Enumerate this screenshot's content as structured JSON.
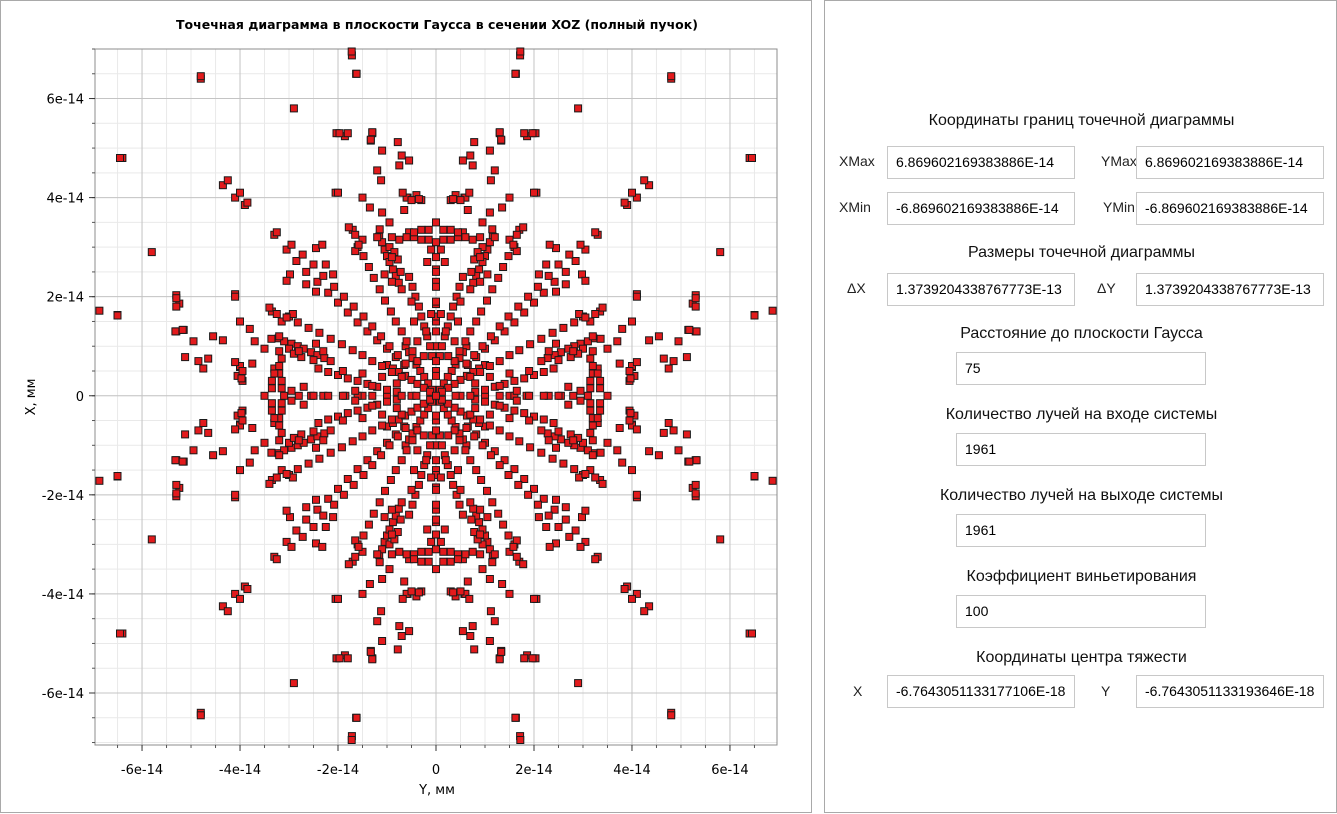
{
  "chart_data": {
    "type": "scatter",
    "title": "Точечная диаграмма в плоскости Гаусса в сечении XOZ (полный пучок)",
    "xlabel": "Y, мм",
    "ylabel": "X, мм",
    "xlim": [
      -6.96e-14,
      6.96e-14
    ],
    "ylim": [
      -7.05e-14,
      7e-14
    ],
    "xticks": [
      -6e-14,
      -4e-14,
      -2e-14,
      0,
      2e-14,
      4e-14,
      6e-14
    ],
    "xtick_labels": [
      "-6e-14",
      "-4e-14",
      "-2e-14",
      "0",
      "2e-14",
      "4e-14",
      "6e-14"
    ],
    "yticks": [
      6e-14,
      4e-14,
      2e-14,
      0,
      -2e-14,
      -4e-14,
      -6e-14
    ],
    "ytick_labels": [
      "6e-14",
      "4e-14",
      "2e-14",
      "0",
      "-2e-14",
      "-4e-14",
      "-6e-14"
    ],
    "grid": true,
    "marker": "square",
    "marker_color": "#e31a1c",
    "marker_edge": "#1a1a1a",
    "points_note": "Sampled subset (first octant); full pattern is symmetric about both axes and both diagonals.",
    "points": [
      {
        "x": 1.717e-14,
        "y": 6.87e-14
      },
      {
        "x": 1.63e-14,
        "y": 6.5e-14
      },
      {
        "x": 4.8e-14,
        "y": 6.4e-14
      },
      {
        "x": 2.9e-14,
        "y": 5.8e-14
      },
      {
        "x": 6.45e-14,
        "y": 4.8e-14
      },
      {
        "x": 1.3e-14,
        "y": 5.3e-14
      },
      {
        "x": 1.33e-14,
        "y": 5.15e-14
      },
      {
        "x": 1.86e-14,
        "y": 5.24e-14
      },
      {
        "x": 2.03e-14,
        "y": 5.3e-14
      },
      {
        "x": 1.2e-14,
        "y": 4.55e-14
      },
      {
        "x": 1.12e-14,
        "y": 4.35e-14
      },
      {
        "x": 1.15e-14,
        "y": 3.36e-14
      },
      {
        "x": 1.16e-14,
        "y": 3.21e-14
      },
      {
        "x": 1.1e-14,
        "y": 3.1e-14
      },
      {
        "x": 1.05e-14,
        "y": 2.95e-14
      },
      {
        "x": 1e-14,
        "y": 2.82e-14
      },
      {
        "x": 9.5e-15,
        "y": 2.7e-14
      },
      {
        "x": 8.8e-15,
        "y": 2.55e-14
      },
      {
        "x": 8.2e-15,
        "y": 2.42e-14
      },
      {
        "x": 7.6e-15,
        "y": 2.28e-14
      },
      {
        "x": 7e-15,
        "y": 2.15e-14
      },
      {
        "x": 6.2e-15,
        "y": 1e-14
      },
      {
        "x": 5.5e-15,
        "y": 8.8e-15
      },
      {
        "x": 4.8e-15,
        "y": 7.6e-15
      },
      {
        "x": 4e-15,
        "y": 6.3e-15
      },
      {
        "x": 3.2e-15,
        "y": 5e-15
      },
      {
        "x": 2.4e-15,
        "y": 3.8e-15
      },
      {
        "x": 1.6e-15,
        "y": 2.5e-15
      },
      {
        "x": 8e-16,
        "y": 1.2e-15
      },
      {
        "x": 0.0,
        "y": 0.0
      },
      {
        "x": 0.0,
        "y": 5e-15
      },
      {
        "x": 0.0,
        "y": 1e-14
      },
      {
        "x": 0.0,
        "y": 1.5e-14
      },
      {
        "x": 0.0,
        "y": 1.85e-14
      },
      {
        "x": 0.0,
        "y": 2.55e-14
      },
      {
        "x": 0.0,
        "y": 3.1e-14
      },
      {
        "x": 0.0,
        "y": 3.5e-14
      },
      {
        "x": 0.0,
        "y": 2.3e-14
      },
      {
        "x": 5.5e-15,
        "y": 3.3e-14
      },
      {
        "x": 4.5e-15,
        "y": 3.2e-14
      },
      {
        "x": 3e-15,
        "y": 3.15e-14
      },
      {
        "x": 1.5e-15,
        "y": 3.15e-14
      },
      {
        "x": 5.8e-15,
        "y": 4e-14
      },
      {
        "x": 6.5e-15,
        "y": 3.75e-14
      },
      {
        "x": 4e-15,
        "y": 4.05e-14
      },
      {
        "x": 1.5e-14,
        "y": 3.15e-14
      },
      {
        "x": 1.2e-14,
        "y": 3.2e-14
      },
      {
        "x": 9.5e-15,
        "y": 3e-14
      },
      {
        "x": 1.6e-14,
        "y": 3e-14
      },
      {
        "x": 1.65e-14,
        "y": 2.92e-14
      },
      {
        "x": 1.7e-14,
        "y": 3.35e-14
      },
      {
        "x": 1.78e-14,
        "y": 3.4e-14
      },
      {
        "x": 2.45e-14,
        "y": 2.98e-14
      },
      {
        "x": 2.25e-14,
        "y": 2.65e-14
      },
      {
        "x": 3.3e-14,
        "y": 3.25e-14
      },
      {
        "x": 3.05e-14,
        "y": 2.95e-14
      },
      {
        "x": 2.85e-14,
        "y": 2.72e-14
      },
      {
        "x": 2.65e-14,
        "y": 2.5e-14
      },
      {
        "x": 2.42e-14,
        "y": 2.3e-14
      },
      {
        "x": 2.2e-14,
        "y": 2.08e-14
      },
      {
        "x": 2e-14,
        "y": 1.88e-14
      },
      {
        "x": 1.8e-14,
        "y": 1.68e-14
      },
      {
        "x": 1.6e-14,
        "y": 1.48e-14
      },
      {
        "x": 1.4e-14,
        "y": 1.3e-14
      },
      {
        "x": 1.2e-14,
        "y": 1.12e-14
      },
      {
        "x": 1e-14,
        "y": 9.5e-15
      },
      {
        "x": 8.2e-15,
        "y": 7.8e-15
      },
      {
        "x": 6.5e-15,
        "y": 6.2e-15
      },
      {
        "x": 4.1e-14,
        "y": 2.05e-14
      },
      {
        "x": 3.35e-14,
        "y": 1.7e-14
      },
      {
        "x": 3.25e-14,
        "y": 1.65e-14
      },
      {
        "x": 3.05e-14,
        "y": 1.58e-14
      },
      {
        "x": 2.82e-14,
        "y": 1.48e-14
      },
      {
        "x": 2.6e-14,
        "y": 1.37e-14
      },
      {
        "x": 2.38e-14,
        "y": 1.27e-14
      },
      {
        "x": 2.15e-14,
        "y": 1.15e-14
      },
      {
        "x": 1.92e-14,
        "y": 1.04e-14
      },
      {
        "x": 1.7e-14,
        "y": 9.2e-15
      },
      {
        "x": 1.5e-14,
        "y": 8.2e-15
      },
      {
        "x": 1.3e-14,
        "y": 7e-15
      },
      {
        "x": 1.1e-14,
        "y": 6e-15
      },
      {
        "x": 9e-15,
        "y": 4.8e-15
      },
      {
        "x": 7e-15,
        "y": 3.8e-15
      },
      {
        "x": 3.2e-14,
        "y": 9e-15
      },
      {
        "x": 3.15e-14,
        "y": 7.5e-15
      },
      {
        "x": 3.2e-14,
        "y": 6e-15
      },
      {
        "x": 3.3e-14,
        "y": 4.5e-15
      },
      {
        "x": 3.35e-14,
        "y": 3e-15
      },
      {
        "x": 3.35e-14,
        "y": 1.5e-15
      },
      {
        "x": 4e-14,
        "y": 6e-15
      },
      {
        "x": 3.95e-14,
        "y": 5e-15
      },
      {
        "x": 3.95e-14,
        "y": 3e-15
      },
      {
        "x": 3.97e-14,
        "y": -3.5e-15
      },
      {
        "x": 4.1e-14,
        "y": 6.8e-15
      },
      {
        "x": 2.9e-14,
        "y": 8.5e-15
      },
      {
        "x": 2.75e-14,
        "y": 7.8e-15
      },
      {
        "x": 2.95e-14,
        "y": 1e-15
      },
      {
        "x": 2.7e-14,
        "y": 1.8e-15
      },
      {
        "x": 2.5e-14,
        "y": 7.2e-15
      },
      {
        "x": 2.4e-14,
        "y": 5.5e-15
      },
      {
        "x": 2.2e-14,
        "y": 4.8e-15
      },
      {
        "x": 2e-14,
        "y": 4.2e-15
      },
      {
        "x": 1.8e-14,
        "y": 3.5e-15
      },
      {
        "x": 1.6e-14,
        "y": 3e-15
      },
      {
        "x": 1.4e-14,
        "y": 2.4e-15
      },
      {
        "x": 1.2e-14,
        "y": 1.8e-15
      },
      {
        "x": 1e-14,
        "y": 1.2e-15
      },
      {
        "x": 8e-15,
        "y": 8e-16
      },
      {
        "x": 3.1e-14,
        "y": 0.0
      },
      {
        "x": 2.8e-14,
        "y": 0.0
      },
      {
        "x": 2.5e-14,
        "y": 0.0
      },
      {
        "x": 2.2e-14,
        "y": 0.0
      },
      {
        "x": 1.9e-14,
        "y": 0.0
      },
      {
        "x": 1.6e-14,
        "y": 0.0
      },
      {
        "x": 1.3e-14,
        "y": 0.0
      },
      {
        "x": 1e-14,
        "y": 0.0
      },
      {
        "x": 7e-15,
        "y": 0.0
      },
      {
        "x": 4e-15,
        "y": 0.0
      },
      {
        "x": 5.3e-14,
        "y": 1.97e-14
      },
      {
        "x": 5.3e-14,
        "y": 1.8e-14
      },
      {
        "x": 5.17e-14,
        "y": 1.33e-14
      },
      {
        "x": 5.32e-14,
        "y": 1.3e-14
      },
      {
        "x": 4.95e-14,
        "y": 1.1e-14
      },
      {
        "x": 5.12e-14,
        "y": 7.8e-15
      },
      {
        "x": 4.85e-14,
        "y": 7e-15
      },
      {
        "x": 4.75e-14,
        "y": 5.5e-15
      },
      {
        "x": 6.95e-14,
        "y": 1.72e-14
      },
      {
        "x": 6.5e-14,
        "y": 1.62e-14
      },
      {
        "x": 5.8e-14,
        "y": 2.9e-14
      },
      {
        "x": 4.35e-14,
        "y": 4.25e-14
      },
      {
        "x": 4.1e-14,
        "y": 4e-14
      },
      {
        "x": 3.9e-14,
        "y": 3.85e-14
      },
      {
        "x": 4.65e-14,
        "y": 7.5e-15
      },
      {
        "x": 3.7e-14,
        "y": 1.1e-14
      },
      {
        "x": 3.5e-14,
        "y": 9.5e-15
      },
      {
        "x": 2.45e-14,
        "y": 1.05e-14
      },
      {
        "x": 2.3e-14,
        "y": 9e-15
      },
      {
        "x": 1.5e-14,
        "y": 4e-14
      },
      {
        "x": 1.35e-14,
        "y": 3.8e-14
      },
      {
        "x": 2e-14,
        "y": 4.1e-14
      },
      {
        "x": 2.32e-14,
        "y": 3.05e-14
      },
      {
        "x": 2.1e-14,
        "y": 2.45e-14
      },
      {
        "x": 9e-15,
        "y": 2.8e-14
      },
      {
        "x": 5e-15,
        "y": 1.9e-14
      },
      {
        "x": 2e-15,
        "y": 1.3e-14
      },
      {
        "x": 1e-15,
        "y": 1.65e-14
      },
      {
        "x": 4.5e-15,
        "y": 1.5e-14
      },
      {
        "x": 3.8e-15,
        "y": 1.1e-14
      },
      {
        "x": 2.5e-15,
        "y": 8e-15
      }
    ]
  },
  "info": {
    "section_bounds": "Координаты границ точечной диаграммы",
    "xmax_label": "XMax",
    "xmax_value": "6.869602169383886E-14",
    "ymax_label": "YMax",
    "ymax_value": "6.869602169383886E-14",
    "xmin_label": "XMin",
    "xmin_value": "-6.869602169383886E-14",
    "ymin_label": "YMin",
    "ymin_value": "-6.869602169383886E-14",
    "section_size": "Размеры точечной диаграммы",
    "dx_label": "ΔX",
    "dx_value": "1.3739204338767773E-13",
    "dy_label": "ΔY",
    "dy_value": "1.3739204338767773E-13",
    "section_distance": "Расстояние до плоскости Гаусса",
    "distance_value": "75",
    "section_rays_in": "Количество лучей на входе системы",
    "rays_in_value": "1961",
    "section_rays_out": "Количество лучей на выходе системы",
    "rays_out_value": "1961",
    "section_vignetting": "Коэффициент виньетирования",
    "vignetting_value": "100",
    "section_centroid": "Координаты центра тяжести",
    "cx_label": "X",
    "cx_value": "-6.7643051133177106E-18",
    "cy_label": "Y",
    "cy_value": "-6.7643051133193646E-18"
  }
}
